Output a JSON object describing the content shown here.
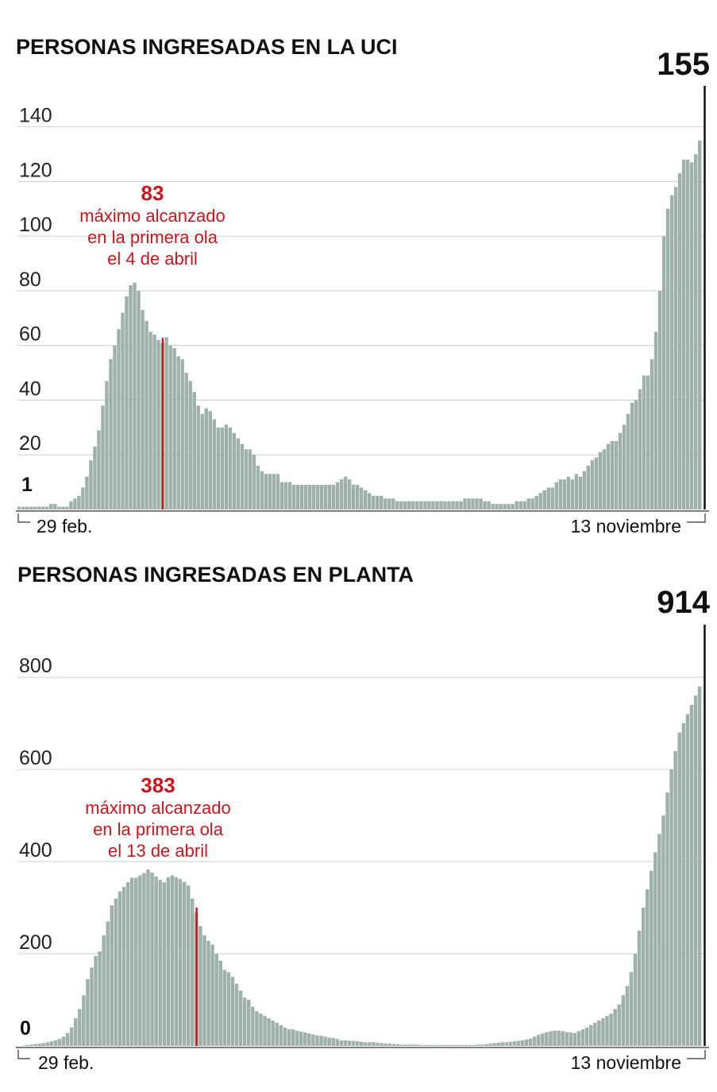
{
  "chart_data": [
    {
      "type": "bar",
      "title": "PERSONAS INGRESADAS EN LA UCI",
      "ylim": [
        0,
        155
      ],
      "yticks": [
        20,
        40,
        60,
        80,
        100,
        120,
        140
      ],
      "grid": true,
      "start_label": "29 feb.",
      "end_label": "13 noviembre",
      "first_value_label": "1",
      "last_value_label": "155",
      "peak": {
        "value_label": "83",
        "lines": [
          "máximo alcanzado",
          "en la primera ola",
          "el 4 de abril"
        ],
        "index": 36
      },
      "values": [
        1,
        1,
        1,
        1,
        1,
        1,
        1,
        1,
        2,
        2,
        1,
        1,
        1,
        3,
        4,
        5,
        8,
        12,
        18,
        23,
        29,
        38,
        47,
        55,
        60,
        66,
        72,
        78,
        82,
        83,
        80,
        73,
        69,
        65,
        64,
        62,
        61,
        63,
        60,
        59,
        56,
        55,
        50,
        47,
        43,
        38,
        35,
        37,
        36,
        33,
        30,
        30,
        31,
        30,
        28,
        26,
        24,
        22,
        22,
        20,
        16,
        14,
        13,
        13,
        13,
        13,
        10,
        10,
        10,
        9,
        9,
        9,
        9,
        9,
        9,
        9,
        9,
        9,
        9,
        9,
        10,
        11,
        12,
        11,
        9,
        9,
        8,
        7,
        6,
        5,
        5,
        5,
        4,
        4,
        4,
        3,
        3,
        3,
        3,
        3,
        3,
        3,
        3,
        3,
        3,
        3,
        3,
        3,
        3,
        3,
        3,
        3,
        4,
        4,
        4,
        4,
        4,
        3,
        3,
        2,
        2,
        2,
        2,
        2,
        2,
        3,
        3,
        3,
        4,
        4,
        5,
        6,
        7,
        8,
        8,
        10,
        11,
        11,
        12,
        11,
        13,
        12,
        14,
        16,
        18,
        19,
        21,
        22,
        24,
        25,
        25,
        28,
        31,
        35,
        39,
        40,
        44,
        49,
        49,
        55,
        65,
        80,
        100,
        110,
        115,
        118,
        123,
        128,
        128,
        127,
        130,
        135,
        155
      ]
    },
    {
      "type": "bar",
      "title": "PERSONAS INGRESADAS EN PLANTA",
      "ylim": [
        0,
        914
      ],
      "yticks": [
        200,
        400,
        600,
        800
      ],
      "grid": true,
      "start_label": "29 feb.",
      "end_label": "13 noviembre",
      "first_value_label": "0",
      "last_value_label": "914",
      "peak": {
        "value_label": "383",
        "lines": [
          "máximo alcanzado",
          "en la primera ola",
          "el 13 de abril"
        ],
        "index": 44
      },
      "values": [
        0,
        1,
        2,
        3,
        4,
        5,
        6,
        8,
        10,
        12,
        15,
        20,
        28,
        40,
        60,
        80,
        110,
        145,
        170,
        195,
        205,
        240,
        270,
        305,
        320,
        335,
        345,
        355,
        365,
        365,
        370,
        375,
        383,
        376,
        368,
        360,
        355,
        366,
        370,
        366,
        362,
        356,
        348,
        320,
        290,
        260,
        240,
        228,
        220,
        200,
        185,
        165,
        160,
        150,
        135,
        120,
        105,
        100,
        85,
        75,
        70,
        65,
        60,
        55,
        50,
        45,
        40,
        36,
        36,
        33,
        31,
        29,
        27,
        25,
        23,
        22,
        20,
        18,
        17,
        15,
        12,
        12,
        11,
        11,
        10,
        9,
        8,
        8,
        8,
        7,
        6,
        5,
        5,
        4,
        4,
        3,
        3,
        3,
        3,
        3,
        2,
        2,
        2,
        2,
        2,
        2,
        2,
        2,
        2,
        2,
        2,
        2,
        2,
        2,
        3,
        3,
        4,
        5,
        6,
        7,
        8,
        8,
        9,
        10,
        11,
        12,
        14,
        16,
        20,
        24,
        27,
        30,
        32,
        33,
        33,
        32,
        30,
        29,
        28,
        32,
        36,
        40,
        45,
        50,
        55,
        60,
        65,
        70,
        80,
        90,
        110,
        130,
        160,
        200,
        250,
        300,
        340,
        380,
        420,
        460,
        500,
        550,
        600,
        640,
        680,
        700,
        720,
        740,
        760,
        780,
        914
      ]
    }
  ]
}
